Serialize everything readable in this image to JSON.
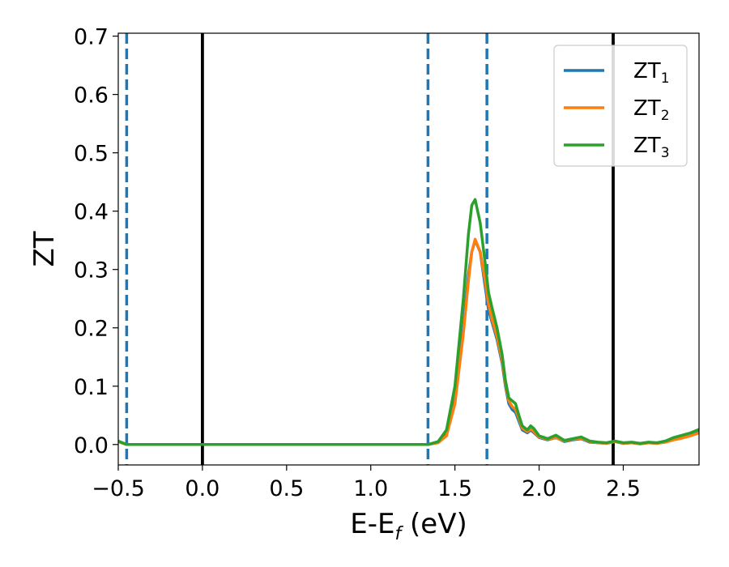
{
  "chart_data": {
    "type": "line",
    "title": "",
    "xlabel": {
      "main": "E-E",
      "sub": "f",
      "suffix": " (eV)"
    },
    "ylabel": "ZT",
    "xlim": [
      -0.5,
      2.95
    ],
    "ylim": [
      -0.035,
      0.705
    ],
    "xticks": [
      -0.5,
      0.0,
      0.5,
      1.0,
      1.5,
      2.0,
      2.5
    ],
    "xtick_labels": [
      "−0.5",
      "0.0",
      "0.5",
      "1.0",
      "1.5",
      "2.0",
      "2.5"
    ],
    "yticks": [
      0.0,
      0.1,
      0.2,
      0.3,
      0.4,
      0.5,
      0.6,
      0.7
    ],
    "ytick_labels": [
      "0.0",
      "0.1",
      "0.2",
      "0.3",
      "0.4",
      "0.5",
      "0.6",
      "0.7"
    ],
    "grid": false,
    "legend_position": "top-right",
    "vertical_lines": [
      {
        "x": -0.45,
        "style": "dashed",
        "color": "#1f77b4"
      },
      {
        "x": 0.0,
        "style": "solid",
        "color": "#000000"
      },
      {
        "x": 1.34,
        "style": "dashed",
        "color": "#1f77b4"
      },
      {
        "x": 1.69,
        "style": "dashed",
        "color": "#1f77b4"
      },
      {
        "x": 2.44,
        "style": "solid",
        "color": "#000000"
      }
    ],
    "series": [
      {
        "name": "ZT",
        "name_sub": "1",
        "color": "#1f77b4",
        "x": [
          -0.5,
          -0.45,
          0.0,
          0.5,
          1.0,
          1.34,
          1.4,
          1.45,
          1.5,
          1.55,
          1.58,
          1.6,
          1.62,
          1.65,
          1.68,
          1.7,
          1.72,
          1.75,
          1.78,
          1.8,
          1.82,
          1.84,
          1.86,
          1.88,
          1.9,
          1.93,
          1.95,
          1.97,
          2.0,
          2.05,
          2.1,
          2.15,
          2.2,
          2.25,
          2.3,
          2.35,
          2.4,
          2.45,
          2.5,
          2.55,
          2.6,
          2.65,
          2.7,
          2.75,
          2.8,
          2.85,
          2.9,
          2.95
        ],
        "y": [
          0.005,
          0.0,
          0.0,
          0.0,
          0.0,
          0.0,
          0.004,
          0.02,
          0.08,
          0.2,
          0.29,
          0.33,
          0.35,
          0.33,
          0.27,
          0.23,
          0.21,
          0.18,
          0.14,
          0.1,
          0.07,
          0.06,
          0.055,
          0.04,
          0.025,
          0.02,
          0.025,
          0.02,
          0.012,
          0.008,
          0.012,
          0.005,
          0.008,
          0.01,
          0.004,
          0.003,
          0.002,
          0.005,
          0.002,
          0.003,
          0.001,
          0.003,
          0.002,
          0.005,
          0.01,
          0.013,
          0.017,
          0.022
        ]
      },
      {
        "name": "ZT",
        "name_sub": "2",
        "color": "#ff7f0e",
        "x": [
          -0.5,
          -0.45,
          0.0,
          0.5,
          1.0,
          1.34,
          1.4,
          1.45,
          1.5,
          1.55,
          1.58,
          1.6,
          1.62,
          1.65,
          1.68,
          1.7,
          1.72,
          1.75,
          1.78,
          1.8,
          1.82,
          1.84,
          1.86,
          1.88,
          1.9,
          1.93,
          1.95,
          1.97,
          2.0,
          2.05,
          2.1,
          2.15,
          2.2,
          2.25,
          2.3,
          2.35,
          2.4,
          2.45,
          2.5,
          2.55,
          2.6,
          2.65,
          2.7,
          2.75,
          2.8,
          2.85,
          2.9,
          2.95
        ],
        "y": [
          0.005,
          0.0,
          0.0,
          0.0,
          0.0,
          0.0,
          0.003,
          0.015,
          0.07,
          0.19,
          0.28,
          0.33,
          0.352,
          0.33,
          0.28,
          0.24,
          0.215,
          0.185,
          0.145,
          0.105,
          0.075,
          0.065,
          0.06,
          0.045,
          0.028,
          0.022,
          0.027,
          0.022,
          0.013,
          0.009,
          0.012,
          0.006,
          0.009,
          0.011,
          0.005,
          0.003,
          0.002,
          0.005,
          0.002,
          0.003,
          0.001,
          0.003,
          0.002,
          0.004,
          0.008,
          0.011,
          0.015,
          0.02
        ]
      },
      {
        "name": "ZT",
        "name_sub": "3",
        "color": "#2ca02c",
        "x": [
          -0.5,
          -0.45,
          0.0,
          0.5,
          1.0,
          1.34,
          1.4,
          1.45,
          1.5,
          1.55,
          1.58,
          1.6,
          1.62,
          1.65,
          1.68,
          1.7,
          1.72,
          1.75,
          1.78,
          1.8,
          1.82,
          1.84,
          1.86,
          1.88,
          1.9,
          1.93,
          1.95,
          1.97,
          2.0,
          2.05,
          2.1,
          2.15,
          2.2,
          2.25,
          2.3,
          2.35,
          2.4,
          2.45,
          2.5,
          2.55,
          2.6,
          2.65,
          2.7,
          2.75,
          2.8,
          2.85,
          2.9,
          2.95
        ],
        "y": [
          0.006,
          0.0,
          0.0,
          0.0,
          0.0,
          0.0,
          0.005,
          0.025,
          0.1,
          0.25,
          0.36,
          0.41,
          0.42,
          0.38,
          0.31,
          0.26,
          0.235,
          0.2,
          0.155,
          0.11,
          0.08,
          0.075,
          0.07,
          0.05,
          0.032,
          0.025,
          0.032,
          0.027,
          0.015,
          0.01,
          0.016,
          0.007,
          0.01,
          0.013,
          0.006,
          0.004,
          0.003,
          0.006,
          0.003,
          0.004,
          0.002,
          0.004,
          0.003,
          0.006,
          0.012,
          0.016,
          0.02,
          0.026
        ]
      }
    ]
  }
}
